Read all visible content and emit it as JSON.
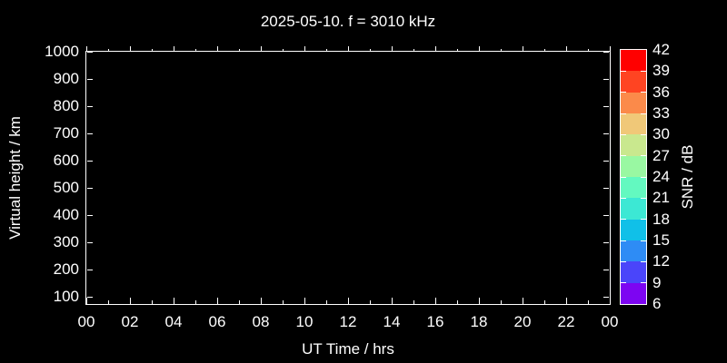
{
  "chart_data": {
    "type": "heatmap",
    "title": "2025-05-10. f = 3010 kHz",
    "xlabel": "UT Time / hrs",
    "ylabel": "Virtual height / km",
    "x_range_hours": [
      0,
      24
    ],
    "x_major_ticks": [
      {
        "hour": 0,
        "label": "00"
      },
      {
        "hour": 2,
        "label": "02"
      },
      {
        "hour": 4,
        "label": "04"
      },
      {
        "hour": 6,
        "label": "06"
      },
      {
        "hour": 8,
        "label": "08"
      },
      {
        "hour": 10,
        "label": "10"
      },
      {
        "hour": 12,
        "label": "12"
      },
      {
        "hour": 14,
        "label": "14"
      },
      {
        "hour": 16,
        "label": "16"
      },
      {
        "hour": 18,
        "label": "18"
      },
      {
        "hour": 20,
        "label": "20"
      },
      {
        "hour": 22,
        "label": "22"
      },
      {
        "hour": 24,
        "label": "00"
      }
    ],
    "x_minor_tick_hours": [
      1,
      3,
      5,
      7,
      9,
      11,
      13,
      15,
      17,
      19,
      21,
      23
    ],
    "y_ticks_km": [
      100,
      200,
      300,
      400,
      500,
      600,
      700,
      800,
      900,
      1000
    ],
    "ylim_km": [
      100,
      1000
    ],
    "grid": false,
    "points": [],
    "colorbar": {
      "label": "SNR / dB",
      "tick_values_top_to_bottom": [
        "42",
        "39",
        "36",
        "33",
        "30",
        "27",
        "24",
        "21",
        "18",
        "15",
        "12",
        "9",
        "6"
      ],
      "segment_colors_top_to_bottom": [
        "#ff0000",
        "#ff4422",
        "#fb8a4a",
        "#f0c878",
        "#c9e88e",
        "#99f8a2",
        "#63f9c0",
        "#3ce8d4",
        "#10c0e8",
        "#2e8cf5",
        "#4a45fa",
        "#7d05f2"
      ]
    },
    "colors": {
      "background": "#000000",
      "foreground": "#ffffff"
    }
  }
}
